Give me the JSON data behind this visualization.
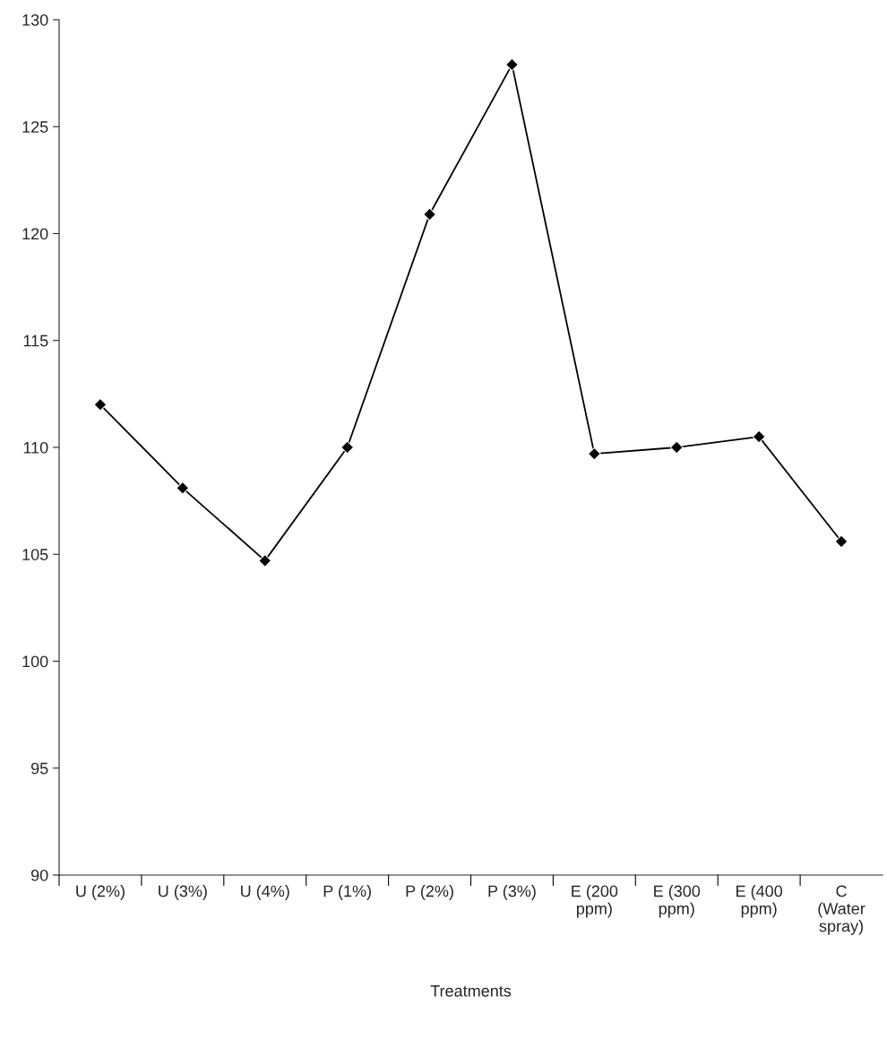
{
  "chart_data": {
    "type": "line",
    "xlabel": "Treatments",
    "categories": [
      "U (2%)",
      "U (3%)",
      "U (4%)",
      "P (1%)",
      "P (2%)",
      "P (3%)",
      "E (200\nppm)",
      "E (300\nppm)",
      "E (400\nppm)",
      "C\n(Water\nspray)"
    ],
    "series": [
      {
        "color": "#000000",
        "values": [
          112.0,
          108.1,
          104.7,
          110.0,
          120.9,
          127.9,
          109.7,
          110.0,
          110.5,
          105.6
        ]
      }
    ],
    "ylim": [
      90,
      130
    ],
    "yticks": [
      90,
      95,
      100,
      105,
      110,
      115,
      120,
      125,
      130
    ],
    "marker": "diamond",
    "line_style": "solid",
    "grid": false
  }
}
